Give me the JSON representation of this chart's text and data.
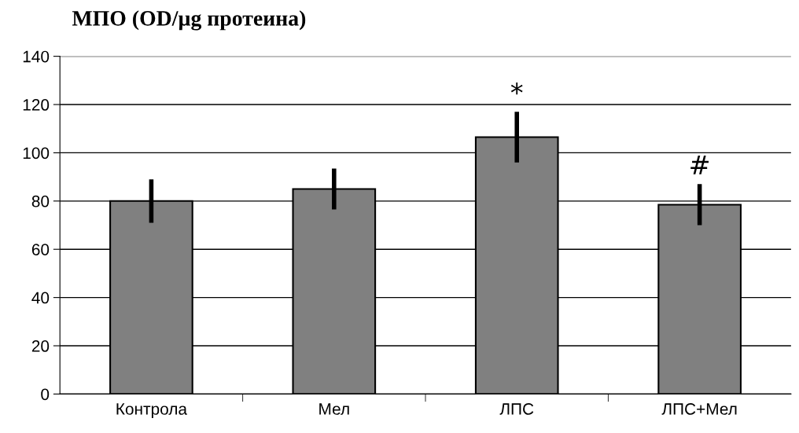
{
  "chart_data": {
    "type": "bar",
    "title": "МПО (OD/µg протеина)",
    "categories": [
      "Контрола",
      "Мел",
      "ЛПС",
      "ЛПС+Мел"
    ],
    "values": [
      80,
      85,
      106.5,
      78.5
    ],
    "errors": [
      9,
      8.5,
      10.5,
      8.5
    ],
    "color": "#808080",
    "ylim": [
      0,
      140
    ],
    "yticks": [
      0,
      20,
      40,
      60,
      80,
      100,
      120,
      140
    ],
    "grid": "y",
    "annotations": [
      "*",
      "#"
    ]
  }
}
